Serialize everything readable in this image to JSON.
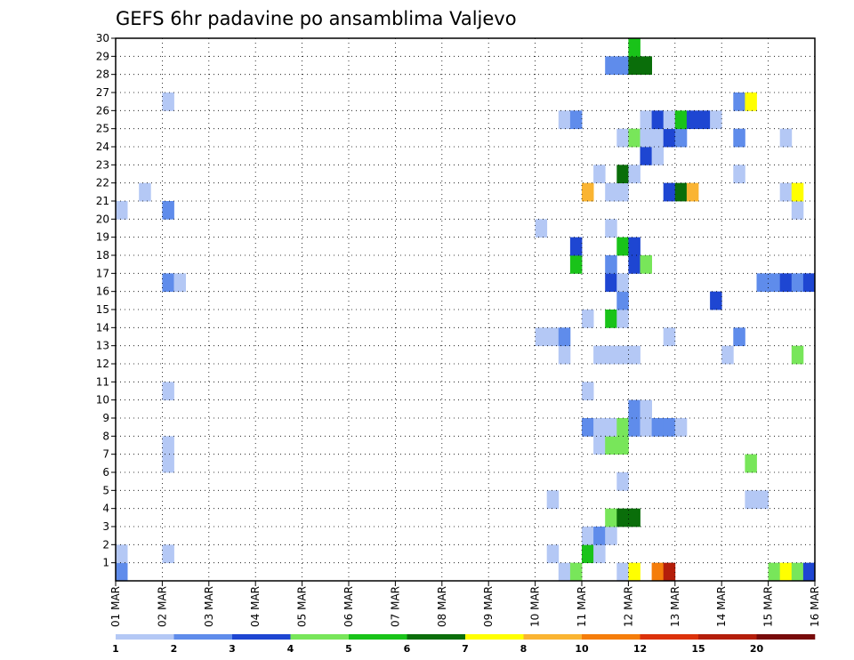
{
  "chart_data": {
    "type": "heatmap",
    "title": "GEFS 6hr padavine po ansamblima Valjevo",
    "x_tick_labels": [
      "01 MAR",
      "02 MAR",
      "03 MAR",
      "04 MAR",
      "05 MAR",
      "06 MAR",
      "07 MAR",
      "08 MAR",
      "09 MAR",
      "10 MAR",
      "11 MAR",
      "12 MAR",
      "13 MAR",
      "14 MAR",
      "15 MAR",
      "16 MAR"
    ],
    "x_steps_per_day": 4,
    "x_total_steps": 60,
    "y_tick_labels": [
      "1",
      "2",
      "3",
      "4",
      "5",
      "6",
      "7",
      "8",
      "9",
      "10",
      "11",
      "12",
      "13",
      "14",
      "15",
      "16",
      "17",
      "18",
      "19",
      "20",
      "21",
      "22",
      "23",
      "24",
      "25",
      "26",
      "27",
      "28",
      "29",
      "30"
    ],
    "ylim": [
      0,
      30
    ],
    "grid": true,
    "legend_position": "bottom",
    "legend": {
      "labels": [
        "1",
        "2",
        "3",
        "4",
        "5",
        "6",
        "7",
        "8",
        "10",
        "12",
        "15",
        "20"
      ],
      "colors": [
        "#b4c8f5",
        "#5f8ceb",
        "#1e46d2",
        "#78e65a",
        "#19c319",
        "#0a6e0a",
        "#ffff00",
        "#fab432",
        "#f57d0a",
        "#dc320a",
        "#b41e0a",
        "#780a0a"
      ]
    },
    "cells": [
      {
        "x": 0,
        "y": 0,
        "level": 2
      },
      {
        "x": 0,
        "y": 1,
        "level": 1
      },
      {
        "x": 0,
        "y": 20,
        "level": 1
      },
      {
        "x": 2,
        "y": 21,
        "level": 1
      },
      {
        "x": 4,
        "y": 1,
        "level": 1
      },
      {
        "x": 4,
        "y": 6,
        "level": 1
      },
      {
        "x": 4,
        "y": 7,
        "level": 1
      },
      {
        "x": 4,
        "y": 10,
        "level": 1
      },
      {
        "x": 4,
        "y": 16,
        "level": 2
      },
      {
        "x": 5,
        "y": 16,
        "level": 1
      },
      {
        "x": 4,
        "y": 20,
        "level": 2
      },
      {
        "x": 4,
        "y": 26,
        "level": 1
      },
      {
        "x": 36,
        "y": 19,
        "level": 1
      },
      {
        "x": 36,
        "y": 13,
        "level": 1
      },
      {
        "x": 37,
        "y": 13,
        "level": 1
      },
      {
        "x": 37,
        "y": 1,
        "level": 1
      },
      {
        "x": 37,
        "y": 4,
        "level": 1
      },
      {
        "x": 38,
        "y": 0,
        "level": 1
      },
      {
        "x": 38,
        "y": 12,
        "level": 1
      },
      {
        "x": 38,
        "y": 13,
        "level": 2
      },
      {
        "x": 38,
        "y": 25,
        "level": 1
      },
      {
        "x": 39,
        "y": 0,
        "level": 4
      },
      {
        "x": 39,
        "y": 17,
        "level": 5
      },
      {
        "x": 39,
        "y": 18,
        "level": 3
      },
      {
        "x": 39,
        "y": 25,
        "level": 2
      },
      {
        "x": 40,
        "y": 1,
        "level": 5
      },
      {
        "x": 40,
        "y": 2,
        "level": 1
      },
      {
        "x": 40,
        "y": 8,
        "level": 2
      },
      {
        "x": 40,
        "y": 10,
        "level": 1
      },
      {
        "x": 40,
        "y": 14,
        "level": 1
      },
      {
        "x": 40,
        "y": 21,
        "level": 8
      },
      {
        "x": 41,
        "y": 1,
        "level": 1
      },
      {
        "x": 41,
        "y": 2,
        "level": 2
      },
      {
        "x": 41,
        "y": 7,
        "level": 1
      },
      {
        "x": 41,
        "y": 8,
        "level": 1
      },
      {
        "x": 41,
        "y": 12,
        "level": 1
      },
      {
        "x": 41,
        "y": 22,
        "level": 1
      },
      {
        "x": 42,
        "y": 2,
        "level": 1
      },
      {
        "x": 42,
        "y": 3,
        "level": 4
      },
      {
        "x": 42,
        "y": 7,
        "level": 4
      },
      {
        "x": 42,
        "y": 8,
        "level": 1
      },
      {
        "x": 42,
        "y": 12,
        "level": 1
      },
      {
        "x": 42,
        "y": 14,
        "level": 5
      },
      {
        "x": 42,
        "y": 16,
        "level": 3
      },
      {
        "x": 42,
        "y": 17,
        "level": 2
      },
      {
        "x": 42,
        "y": 19,
        "level": 1
      },
      {
        "x": 42,
        "y": 21,
        "level": 1
      },
      {
        "x": 42,
        "y": 28,
        "level": 2
      },
      {
        "x": 43,
        "y": 0,
        "level": 1
      },
      {
        "x": 43,
        "y": 3,
        "level": 6
      },
      {
        "x": 43,
        "y": 5,
        "level": 1
      },
      {
        "x": 43,
        "y": 7,
        "level": 4
      },
      {
        "x": 43,
        "y": 8,
        "level": 4
      },
      {
        "x": 43,
        "y": 12,
        "level": 1
      },
      {
        "x": 43,
        "y": 14,
        "level": 1
      },
      {
        "x": 43,
        "y": 15,
        "level": 2
      },
      {
        "x": 43,
        "y": 16,
        "level": 1
      },
      {
        "x": 43,
        "y": 18,
        "level": 5
      },
      {
        "x": 43,
        "y": 21,
        "level": 1
      },
      {
        "x": 43,
        "y": 22,
        "level": 6
      },
      {
        "x": 43,
        "y": 24,
        "level": 1
      },
      {
        "x": 43,
        "y": 28,
        "level": 2
      },
      {
        "x": 44,
        "y": 0,
        "level": 7
      },
      {
        "x": 44,
        "y": 3,
        "level": 6
      },
      {
        "x": 44,
        "y": 8,
        "level": 2
      },
      {
        "x": 44,
        "y": 9,
        "level": 2
      },
      {
        "x": 44,
        "y": 12,
        "level": 1
      },
      {
        "x": 44,
        "y": 17,
        "level": 3
      },
      {
        "x": 44,
        "y": 18,
        "level": 3
      },
      {
        "x": 44,
        "y": 22,
        "level": 1
      },
      {
        "x": 44,
        "y": 24,
        "level": 4
      },
      {
        "x": 44,
        "y": 28,
        "level": 6
      },
      {
        "x": 44,
        "y": 29,
        "level": 5
      },
      {
        "x": 45,
        "y": 8,
        "level": 1
      },
      {
        "x": 45,
        "y": 9,
        "level": 1
      },
      {
        "x": 45,
        "y": 17,
        "level": 4
      },
      {
        "x": 45,
        "y": 23,
        "level": 3
      },
      {
        "x": 45,
        "y": 24,
        "level": 1
      },
      {
        "x": 45,
        "y": 25,
        "level": 1
      },
      {
        "x": 45,
        "y": 28,
        "level": 6
      },
      {
        "x": 46,
        "y": 0,
        "level": 9
      },
      {
        "x": 46,
        "y": 8,
        "level": 2
      },
      {
        "x": 46,
        "y": 23,
        "level": 1
      },
      {
        "x": 46,
        "y": 24,
        "level": 1
      },
      {
        "x": 46,
        "y": 25,
        "level": 3
      },
      {
        "x": 47,
        "y": 0,
        "level": 11
      },
      {
        "x": 47,
        "y": 8,
        "level": 2
      },
      {
        "x": 47,
        "y": 13,
        "level": 1
      },
      {
        "x": 47,
        "y": 21,
        "level": 3
      },
      {
        "x": 47,
        "y": 24,
        "level": 3
      },
      {
        "x": 47,
        "y": 25,
        "level": 1
      },
      {
        "x": 48,
        "y": 8,
        "level": 1
      },
      {
        "x": 48,
        "y": 21,
        "level": 6
      },
      {
        "x": 48,
        "y": 24,
        "level": 2
      },
      {
        "x": 48,
        "y": 25,
        "level": 5
      },
      {
        "x": 49,
        "y": 21,
        "level": 8
      },
      {
        "x": 49,
        "y": 25,
        "level": 3
      },
      {
        "x": 50,
        "y": 25,
        "level": 3
      },
      {
        "x": 51,
        "y": 15,
        "level": 3
      },
      {
        "x": 51,
        "y": 25,
        "level": 1
      },
      {
        "x": 52,
        "y": 12,
        "level": 1
      },
      {
        "x": 53,
        "y": 13,
        "level": 2
      },
      {
        "x": 53,
        "y": 22,
        "level": 1
      },
      {
        "x": 53,
        "y": 24,
        "level": 2
      },
      {
        "x": 53,
        "y": 26,
        "level": 2
      },
      {
        "x": 54,
        "y": 4,
        "level": 1
      },
      {
        "x": 54,
        "y": 6,
        "level": 4
      },
      {
        "x": 54,
        "y": 26,
        "level": 7
      },
      {
        "x": 55,
        "y": 4,
        "level": 1
      },
      {
        "x": 55,
        "y": 16,
        "level": 2
      },
      {
        "x": 56,
        "y": 0,
        "level": 4
      },
      {
        "x": 56,
        "y": 16,
        "level": 2
      },
      {
        "x": 57,
        "y": 0,
        "level": 7
      },
      {
        "x": 57,
        "y": 16,
        "level": 3
      },
      {
        "x": 57,
        "y": 21,
        "level": 1
      },
      {
        "x": 57,
        "y": 24,
        "level": 1
      },
      {
        "x": 58,
        "y": 0,
        "level": 4
      },
      {
        "x": 58,
        "y": 12,
        "level": 4
      },
      {
        "x": 58,
        "y": 16,
        "level": 2
      },
      {
        "x": 58,
        "y": 20,
        "level": 1
      },
      {
        "x": 58,
        "y": 21,
        "level": 7
      },
      {
        "x": 59,
        "y": 0,
        "level": 3
      },
      {
        "x": 59,
        "y": 16,
        "level": 3
      }
    ]
  }
}
